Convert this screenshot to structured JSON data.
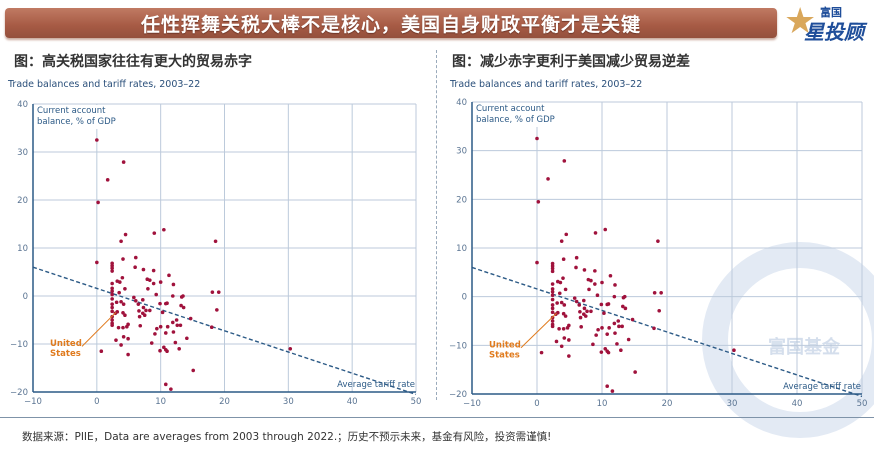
{
  "header": {
    "title": "任性挥舞关税大棒不是核心，美国自身财政平衡才是关键",
    "logo_top": "富国",
    "logo_main": "星投顾",
    "watermark": "富国基金"
  },
  "colors": {
    "banner": "#a65a44",
    "points": "#a0123c",
    "trend": "#2c5a86",
    "grid": "#bccadb",
    "axis": "#2c5a86",
    "annotation": "#e07b1e"
  },
  "footer": "数据来源：PIIE，Data are averages from 2003 through 2022.；历史不预示未来，基金有风险，投资需谨慎!",
  "chart_data": [
    {
      "type": "scatter",
      "figure_title": "图：高关税国家往往有更大的贸易赤字",
      "subtitle": "Trade balances and tariff rates, 2003–22"
    },
    {
      "type": "scatter",
      "figure_title": "图：减少赤字更利于美国减少贸易逆差",
      "subtitle": "Trade balances and tariff rates, 2003–22"
    }
  ],
  "shared": {
    "xlabel": "Average tariff rate",
    "ylabel": "Current account balance, % of GDP",
    "ylabel_lines": [
      "Current account",
      "balance, % of GDP"
    ],
    "xlim": [
      -10,
      50
    ],
    "ylim": [
      -20,
      40
    ],
    "xticks": [
      -10,
      0,
      10,
      20,
      30,
      40,
      50
    ],
    "yticks": [
      -20,
      -10,
      0,
      10,
      20,
      30,
      40
    ],
    "grid": true,
    "trendline": [
      [
        -10,
        6
      ],
      [
        50,
        -20.5
      ]
    ],
    "annotation": {
      "label_lines": [
        "United",
        "States"
      ],
      "point": [
        3,
        -3.4
      ]
    },
    "points": [
      [
        0,
        32.5
      ],
      [
        4.2,
        27.9
      ],
      [
        1.7,
        24.2
      ],
      [
        0.2,
        19.5
      ],
      [
        4.5,
        12.8
      ],
      [
        3.8,
        11.4
      ],
      [
        9,
        13.1
      ],
      [
        10.5,
        13.8
      ],
      [
        18.6,
        11.4
      ],
      [
        0,
        7
      ],
      [
        2.4,
        6.8
      ],
      [
        2.4,
        6.3
      ],
      [
        2.4,
        5.8
      ],
      [
        2.4,
        5.2
      ],
      [
        4.1,
        7.7
      ],
      [
        6.1,
        8
      ],
      [
        6,
        6
      ],
      [
        7.3,
        5.5
      ],
      [
        8.9,
        5.3
      ],
      [
        7.9,
        3.5
      ],
      [
        8.3,
        3.3
      ],
      [
        4,
        3.8
      ],
      [
        3.2,
        3.1
      ],
      [
        3.6,
        2.9
      ],
      [
        2.4,
        2.6
      ],
      [
        4.4,
        1.5
      ],
      [
        8,
        1.5
      ],
      [
        8.9,
        2.6
      ],
      [
        10,
        2.9
      ],
      [
        11.3,
        4.3
      ],
      [
        12,
        2.4
      ],
      [
        2.4,
        1.6
      ],
      [
        2.4,
        1
      ],
      [
        2.4,
        0.3
      ],
      [
        3.5,
        0.7
      ],
      [
        9.3,
        0.3
      ],
      [
        11.9,
        0
      ],
      [
        13.5,
        0
      ],
      [
        13.3,
        -0.2
      ],
      [
        5.8,
        -0.3
      ],
      [
        6.1,
        -1
      ],
      [
        7.2,
        -0.8
      ],
      [
        6.5,
        -1.7
      ],
      [
        2.4,
        -0.6
      ],
      [
        2.4,
        -1.7
      ],
      [
        2.4,
        -2.4
      ],
      [
        2.4,
        -3.2
      ],
      [
        3.1,
        -1.3
      ],
      [
        3.8,
        -1.2
      ],
      [
        4.2,
        -1.7
      ],
      [
        9.9,
        -1.6
      ],
      [
        10.8,
        -1.6
      ],
      [
        11,
        -1.5
      ],
      [
        7.3,
        -2.4
      ],
      [
        13.2,
        -2
      ],
      [
        13.6,
        -2.4
      ],
      [
        6.6,
        -3.1
      ],
      [
        7.7,
        -3
      ],
      [
        8.3,
        -3
      ],
      [
        7.2,
        -3.6
      ],
      [
        7.5,
        -4
      ],
      [
        2.9,
        -3.6
      ],
      [
        3.2,
        -3.3
      ],
      [
        4.1,
        -3.5
      ],
      [
        4.4,
        -4
      ],
      [
        10.3,
        -3.4
      ],
      [
        6.7,
        -4.3
      ],
      [
        2.4,
        -4.3
      ],
      [
        2.4,
        -5
      ],
      [
        2.4,
        -5.7
      ],
      [
        2.4,
        -6.1
      ],
      [
        12.5,
        -5
      ],
      [
        14.7,
        -4.7
      ],
      [
        11.9,
        -5.5
      ],
      [
        11.1,
        -6.4
      ],
      [
        10,
        -6.4
      ],
      [
        4.9,
        -5.9
      ],
      [
        4.7,
        -6.4
      ],
      [
        3.4,
        -6.6
      ],
      [
        4.1,
        -6.6
      ],
      [
        6.8,
        -6.2
      ],
      [
        9.4,
        -6.8
      ],
      [
        9.1,
        -7.9
      ],
      [
        10.8,
        -7.7
      ],
      [
        12,
        -7.5
      ],
      [
        12.6,
        -6.1
      ],
      [
        13.1,
        -6.1
      ],
      [
        18,
        -6.5
      ],
      [
        18.1,
        0.8
      ],
      [
        19.1,
        0.8
      ],
      [
        18.8,
        -2.9
      ],
      [
        4.2,
        -8.5
      ],
      [
        4.9,
        -8.9
      ],
      [
        3,
        -9.2
      ],
      [
        8.6,
        -9.8
      ],
      [
        12.3,
        -9.7
      ],
      [
        14.1,
        -8.8
      ],
      [
        3.8,
        -10.2
      ],
      [
        10.5,
        -10.7
      ],
      [
        10.8,
        -11.2
      ],
      [
        11,
        -11.5
      ],
      [
        9.9,
        -11.4
      ],
      [
        12.9,
        -11
      ],
      [
        4.9,
        -12.2
      ],
      [
        0.7,
        -11.5
      ],
      [
        15.1,
        -15.5
      ],
      [
        10.8,
        -18.4
      ],
      [
        11.6,
        -19.4
      ],
      [
        30.3,
        -11
      ]
    ]
  }
}
